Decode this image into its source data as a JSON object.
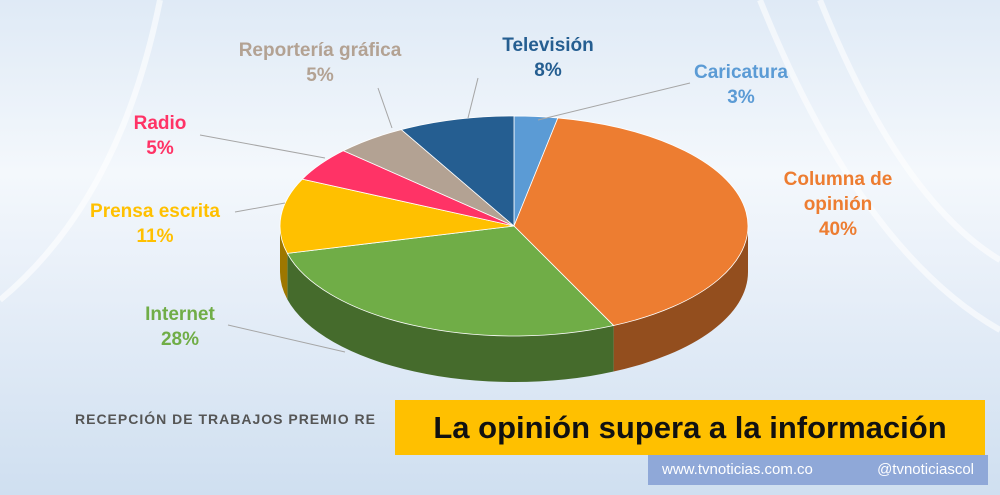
{
  "chart_data": {
    "type": "pie",
    "categories": [
      "Caricatura",
      "Columna de opinión",
      "Internet",
      "Prensa escrita",
      "Radio",
      "Reportería gráfica",
      "Televisión"
    ],
    "values": [
      3,
      40,
      28,
      11,
      5,
      5,
      8
    ],
    "value_labels": [
      "3%",
      "40%",
      "28%",
      "11%",
      "5%",
      "5%",
      "8%"
    ],
    "colors": [
      "#5b9bd5",
      "#ed7d31",
      "#70ad47",
      "#ffc000",
      "#ff3366",
      "#b3a293",
      "#255e91"
    ]
  },
  "caption": "RECEPCIÓN DE TRABAJOS PREMIO RE",
  "banner": "La opinión supera a la información",
  "footer": {
    "website": "www.tvnoticias.com.co",
    "handle": "@tvnoticiascol"
  }
}
